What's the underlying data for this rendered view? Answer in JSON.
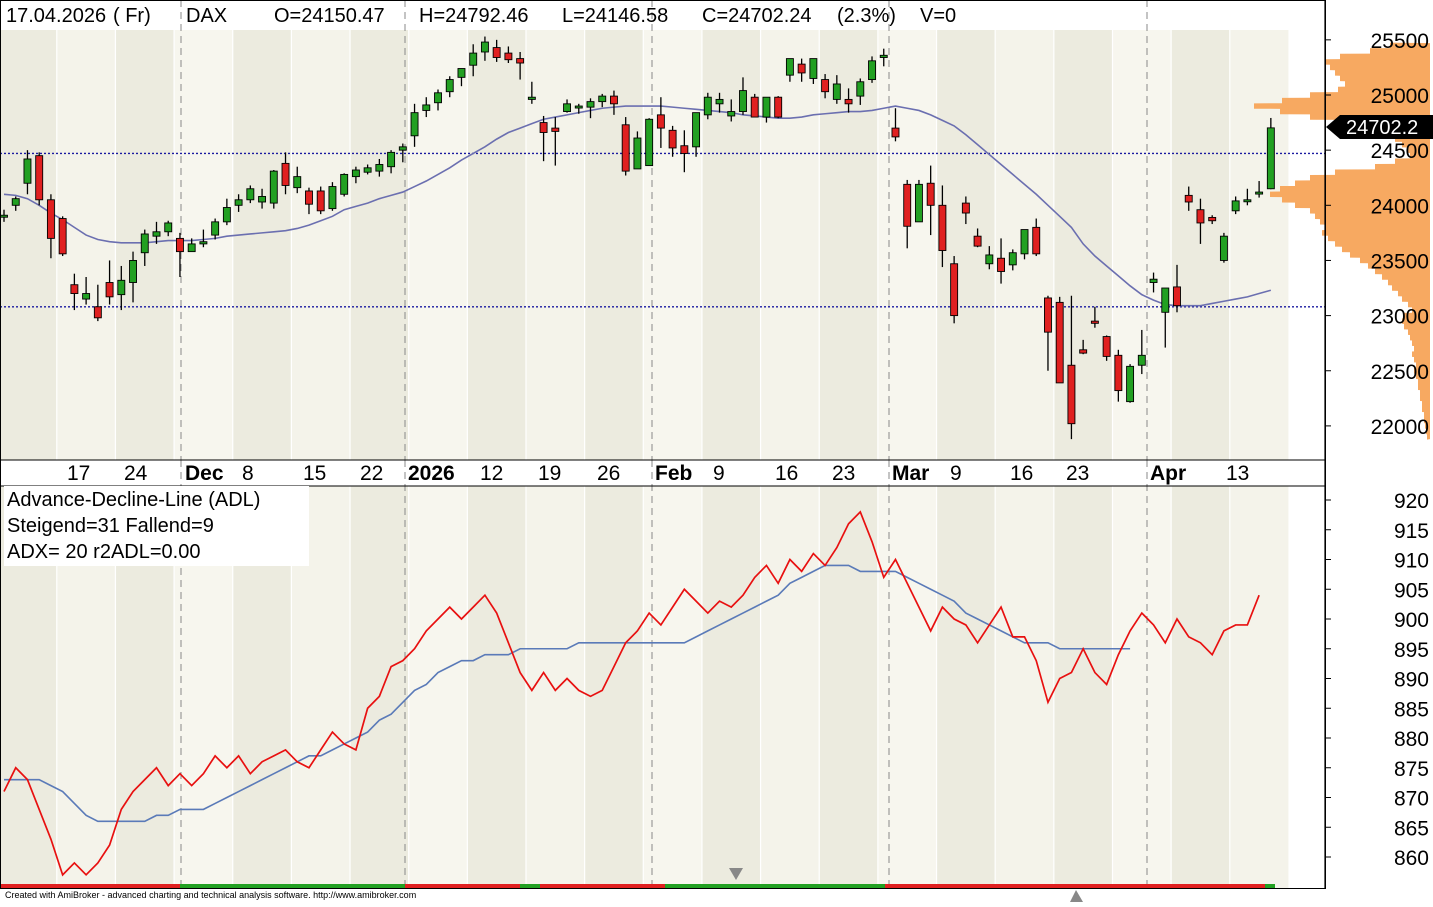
{
  "header": {
    "date": "17.04.2026",
    "weekday": "( Fr)",
    "symbol": "DAX",
    "open": "O=24150.47",
    "high": "H=24792.46",
    "low": "L=24146.58",
    "close": "C=24702.24",
    "change": "(2.3%)",
    "volume": "V=0"
  },
  "price_tag": "24702.2",
  "adl_panel": {
    "title": "Advance-Decline-Line (ADL)",
    "stats": "Steigend=31  Fallend=9",
    "adx": "ADX= 20  r2ADL=0.00"
  },
  "credit": "Created with AmiBroker - advanced charting and technical analysis software. http://www.amibroker.com",
  "colors": {
    "up": "#22a022",
    "down": "#e02020",
    "ma": "#6b6fb0",
    "adl": "#e81010",
    "adl_ma": "#5a7ab8",
    "hline": "#1a1aa0",
    "volume_profile": "#f7a458"
  },
  "chart_data": [
    {
      "type": "candlestick",
      "title": "DAX",
      "ylim": [
        21700,
        25800
      ],
      "yticks": [
        "25500",
        "25000",
        "24500",
        "24000",
        "23500",
        "23000",
        "22500",
        "22000"
      ],
      "x_labels": [
        "17",
        "24",
        "Dec",
        "8",
        "15",
        "22",
        "2026",
        "12",
        "19",
        "26",
        "Feb",
        "9",
        "16",
        "23",
        "Mar",
        "9",
        "16",
        "23",
        "Apr",
        "13"
      ],
      "horizontal_lines": [
        24470,
        23080
      ],
      "last_value": 24702.2,
      "candles": [
        [
          23900,
          23960,
          23850,
          23910
        ],
        [
          24000,
          24080,
          23950,
          24060
        ],
        [
          24200,
          24500,
          24100,
          24420
        ],
        [
          24450,
          24480,
          24000,
          24050
        ],
        [
          24050,
          24100,
          23520,
          23700
        ],
        [
          23880,
          23900,
          23540,
          23560
        ],
        [
          23280,
          23380,
          23050,
          23200
        ],
        [
          23150,
          23350,
          23100,
          23200
        ],
        [
          23080,
          23280,
          22950,
          22980
        ],
        [
          23300,
          23500,
          23100,
          23170
        ],
        [
          23190,
          23450,
          23050,
          23320
        ],
        [
          23300,
          23580,
          23120,
          23500
        ],
        [
          23570,
          23780,
          23450,
          23740
        ],
        [
          23720,
          23850,
          23650,
          23760
        ],
        [
          23760,
          23860,
          23720,
          23840
        ],
        [
          23700,
          23750,
          23350,
          23580
        ],
        [
          23580,
          23700,
          23580,
          23650
        ],
        [
          23650,
          23780,
          23620,
          23670
        ],
        [
          23730,
          23880,
          23690,
          23850
        ],
        [
          23850,
          24060,
          23820,
          23980
        ],
        [
          24000,
          24100,
          23940,
          24050
        ],
        [
          24050,
          24180,
          24020,
          24150
        ],
        [
          24030,
          24150,
          23970,
          24080
        ],
        [
          24020,
          24320,
          23970,
          24310
        ],
        [
          24380,
          24480,
          24100,
          24180
        ],
        [
          24160,
          24350,
          24110,
          24260
        ],
        [
          24130,
          24160,
          23920,
          24010
        ],
        [
          24130,
          24170,
          23920,
          23950
        ],
        [
          23970,
          24210,
          23950,
          24170
        ],
        [
          24100,
          24290,
          24080,
          24280
        ],
        [
          24260,
          24350,
          24200,
          24320
        ],
        [
          24300,
          24370,
          24280,
          24340
        ],
        [
          24310,
          24420,
          24260,
          24370
        ],
        [
          24350,
          24500,
          24290,
          24480
        ],
        [
          24500,
          24560,
          24390,
          24530
        ],
        [
          24630,
          24920,
          24530,
          24840
        ],
        [
          24860,
          24980,
          24800,
          24910
        ],
        [
          24930,
          25050,
          24860,
          25020
        ],
        [
          25030,
          25170,
          24980,
          25140
        ],
        [
          25160,
          25240,
          25080,
          25240
        ],
        [
          25270,
          25460,
          25170,
          25380
        ],
        [
          25390,
          25530,
          25310,
          25480
        ],
        [
          25430,
          25500,
          25300,
          25340
        ],
        [
          25380,
          25440,
          25290,
          25320
        ],
        [
          25330,
          25390,
          25140,
          25290
        ],
        [
          24960,
          25120,
          24920,
          24980
        ],
        [
          24750,
          24810,
          24400,
          24660
        ],
        [
          24700,
          24800,
          24360,
          24670
        ],
        [
          24850,
          24960,
          24840,
          24920
        ],
        [
          24890,
          24920,
          24830,
          24900
        ],
        [
          24890,
          24970,
          24790,
          24940
        ],
        [
          24940,
          25010,
          24890,
          24990
        ],
        [
          24990,
          25040,
          24820,
          24920
        ],
        [
          24730,
          24800,
          24270,
          24310
        ],
        [
          24330,
          24670,
          24330,
          24610
        ],
        [
          24360,
          24790,
          24360,
          24780
        ],
        [
          24820,
          24980,
          24520,
          24700
        ],
        [
          24680,
          24720,
          24440,
          24520
        ],
        [
          24540,
          24680,
          24300,
          24470
        ],
        [
          24530,
          24840,
          24440,
          24840
        ],
        [
          24820,
          25020,
          24780,
          24980
        ],
        [
          24920,
          25020,
          24840,
          24960
        ],
        [
          24810,
          24960,
          24760,
          24850
        ],
        [
          24850,
          25160,
          24820,
          25040
        ],
        [
          24980,
          25010,
          24820,
          24800
        ],
        [
          24800,
          24970,
          24750,
          24980
        ],
        [
          24980,
          24990,
          24790,
          24800
        ],
        [
          25180,
          25330,
          25120,
          25330
        ],
        [
          25280,
          25330,
          25120,
          25200
        ],
        [
          25150,
          25330,
          25100,
          25330
        ],
        [
          25140,
          25190,
          24970,
          25030
        ],
        [
          24960,
          25180,
          24920,
          25100
        ],
        [
          24960,
          25060,
          24840,
          24920
        ],
        [
          24990,
          25150,
          24910,
          25120
        ],
        [
          25140,
          25350,
          25110,
          25310
        ],
        [
          25340,
          25420,
          25260,
          25360
        ],
        [
          24700,
          24880,
          24580,
          24620
        ],
        [
          24190,
          24230,
          23610,
          23810
        ],
        [
          23850,
          24230,
          23850,
          24190
        ],
        [
          24200,
          24360,
          23730,
          24000
        ],
        [
          24000,
          24180,
          23440,
          23590
        ],
        [
          23470,
          23540,
          22930,
          23000
        ],
        [
          24020,
          24080,
          23830,
          23930
        ],
        [
          23720,
          23790,
          23620,
          23630
        ],
        [
          23470,
          23630,
          23420,
          23550
        ],
        [
          23520,
          23700,
          23290,
          23400
        ],
        [
          23460,
          23600,
          23410,
          23570
        ],
        [
          23560,
          23760,
          23510,
          23780
        ],
        [
          23800,
          23880,
          23540,
          23560
        ],
        [
          23160,
          23180,
          22500,
          22850
        ],
        [
          23120,
          23170,
          22390,
          22390
        ],
        [
          22550,
          23180,
          21880,
          22020
        ],
        [
          22690,
          22780,
          22650,
          22660
        ],
        [
          22950,
          23080,
          22890,
          22930
        ],
        [
          22810,
          22820,
          22590,
          22630
        ],
        [
          22640,
          22690,
          22220,
          22320
        ],
        [
          22220,
          22560,
          22210,
          22540
        ],
        [
          22550,
          22870,
          22470,
          22640
        ],
        [
          23300,
          23390,
          23210,
          23330
        ],
        [
          23030,
          23230,
          22710,
          23250
        ],
        [
          23260,
          23460,
          23030,
          23090
        ],
        [
          24090,
          24170,
          23950,
          24030
        ],
        [
          23960,
          24060,
          23650,
          23840
        ],
        [
          23890,
          23910,
          23830,
          23860
        ],
        [
          23500,
          23750,
          23480,
          23720
        ],
        [
          23950,
          24080,
          23920,
          24040
        ],
        [
          24050,
          24150,
          24000,
          24050
        ],
        [
          24110,
          24220,
          24070,
          24120
        ],
        [
          24150,
          24792,
          24146,
          24702
        ]
      ],
      "series": [
        {
          "name": "",
          "values": [
            24100,
            24090,
            24060,
            24000,
            23930,
            23870,
            23800,
            23730,
            23690,
            23670,
            23660,
            23660,
            23660,
            23670,
            23680,
            23680,
            23680,
            23690,
            23700,
            23720,
            23730,
            23740,
            23750,
            23760,
            23770,
            23790,
            23820,
            23860,
            23900,
            23960,
            23990,
            24020,
            24060,
            24090,
            24120,
            24170,
            24220,
            24280,
            24340,
            24410,
            24470,
            24530,
            24600,
            24660,
            24700,
            24740,
            24780,
            24800,
            24820,
            24840,
            24860,
            24880,
            24890,
            24900,
            24900,
            24900,
            24900,
            24890,
            24880,
            24870,
            24860,
            24850,
            24840,
            24820,
            24810,
            24800,
            24790,
            24790,
            24800,
            24820,
            24830,
            24840,
            24850,
            24850,
            24860,
            24880,
            24900,
            24880,
            24860,
            24820,
            24770,
            24720,
            24640,
            24550,
            24460,
            24370,
            24280,
            24190,
            24100,
            24000,
            23900,
            23800,
            23650,
            23540,
            23450,
            23360,
            23270,
            23190,
            23140,
            23100,
            23090,
            23090,
            23090,
            23110,
            23130,
            23150,
            23170,
            23200,
            23230
          ]
        }
      ]
    },
    {
      "type": "line",
      "title": "Advance-Decline-Line (ADL)",
      "ylim": [
        856,
        922
      ],
      "yticks": [
        "920",
        "915",
        "910",
        "905",
        "900",
        "895",
        "890",
        "885",
        "880",
        "875",
        "870",
        "865",
        "860"
      ],
      "series": [
        {
          "name": "Advance-Decline-Line (ADL)",
          "values": [
            871,
            875,
            873,
            868,
            863,
            857,
            859,
            857,
            859,
            862,
            868,
            871,
            873,
            875,
            872,
            874,
            872,
            874,
            877,
            875,
            877,
            874,
            876,
            877,
            878,
            876,
            875,
            878,
            881,
            879,
            878,
            885,
            887,
            892,
            893,
            895,
            898,
            900,
            902,
            900,
            902,
            904,
            901,
            896,
            891,
            888,
            891,
            888,
            890,
            888,
            887,
            888,
            892,
            896,
            898,
            901,
            899,
            902,
            905,
            903,
            901,
            903,
            902,
            904,
            907,
            909,
            906,
            910,
            908,
            911,
            909,
            912,
            916,
            918,
            913,
            907,
            910,
            906,
            902,
            898,
            902,
            900,
            899,
            896,
            899,
            902,
            897,
            897,
            893,
            886,
            890,
            891,
            895,
            891,
            889,
            894,
            898,
            901,
            899,
            896,
            900,
            897,
            896,
            894,
            898,
            899,
            899,
            904
          ]
        },
        {
          "name": "",
          "values": [
            873,
            873,
            873,
            873,
            872,
            871,
            869,
            867,
            866,
            866,
            866,
            866,
            866,
            867,
            867,
            868,
            868,
            868,
            869,
            870,
            871,
            872,
            873,
            874,
            875,
            876,
            877,
            877,
            878,
            879,
            880,
            881,
            883,
            884,
            886,
            888,
            889,
            891,
            892,
            893,
            893,
            894,
            894,
            894,
            895,
            895,
            895,
            895,
            895,
            896,
            896,
            896,
            896,
            896,
            896,
            896,
            896,
            896,
            896,
            897,
            898,
            899,
            900,
            901,
            902,
            903,
            904,
            906,
            907,
            908,
            909,
            909,
            909,
            908,
            908,
            908,
            908,
            907,
            906,
            905,
            904,
            903,
            901,
            900,
            899,
            898,
            897,
            896,
            896,
            896,
            895,
            895,
            895,
            895,
            895,
            895,
            895
          ]
        }
      ]
    }
  ]
}
